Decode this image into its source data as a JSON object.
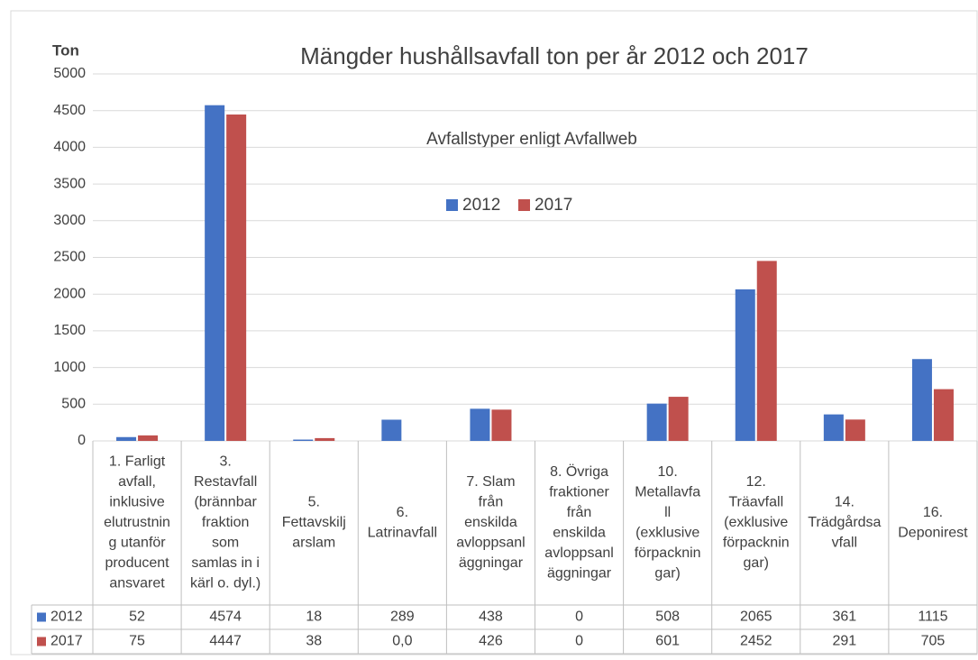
{
  "chart_data": {
    "type": "bar",
    "title": "Mängder hushållsavfall ton per år 2012 och 2017",
    "y_label": "Ton",
    "annotation": "Avfallstyper enligt Avfallweb",
    "categories": [
      [
        "1. Farligt",
        "avfall,",
        "inklusive",
        "elutrustnin",
        "g utanför",
        "producent",
        "ansvaret"
      ],
      [
        "3.",
        "Restavfall",
        "(brännbar",
        "fraktion",
        "som",
        "samlas in i",
        "kärl o. dyl.)"
      ],
      [
        "5.",
        "Fettavskilj",
        "arslam"
      ],
      [
        "6.",
        "Latrinavfall"
      ],
      [
        "7. Slam",
        "från",
        "enskilda",
        "avloppsanl",
        "äggningar"
      ],
      [
        "8. Övriga",
        "fraktioner",
        "från",
        "enskilda",
        "avloppsanl",
        "äggningar"
      ],
      [
        "10.",
        "Metallavfa",
        "ll",
        "(exklusive",
        "förpacknin",
        "gar)"
      ],
      [
        "12.",
        "Träavfall",
        "(exklusive",
        "förpacknin",
        "gar)"
      ],
      [
        "14.",
        "Trädgårdsa",
        "vfall"
      ],
      [
        "16.",
        "Deponirest"
      ]
    ],
    "series": [
      {
        "name": "2012",
        "color": "#4472c4",
        "values": [
          52,
          4574,
          18,
          289,
          438,
          0,
          508,
          2065,
          361,
          1115
        ]
      },
      {
        "name": "2017",
        "color": "#c0504d",
        "values": [
          75,
          4447,
          38,
          0,
          426,
          0,
          601,
          2452,
          291,
          705
        ],
        "value_labels": [
          "75",
          "4447",
          "38",
          "0,0",
          "426",
          "0",
          "601",
          "2452",
          "291",
          "705"
        ]
      }
    ],
    "ylim": [
      0,
      5000
    ],
    "yticks": [
      0,
      500,
      1000,
      1500,
      2000,
      2500,
      3000,
      3500,
      4000,
      4500,
      5000
    ],
    "grid": true,
    "legend": "top"
  }
}
